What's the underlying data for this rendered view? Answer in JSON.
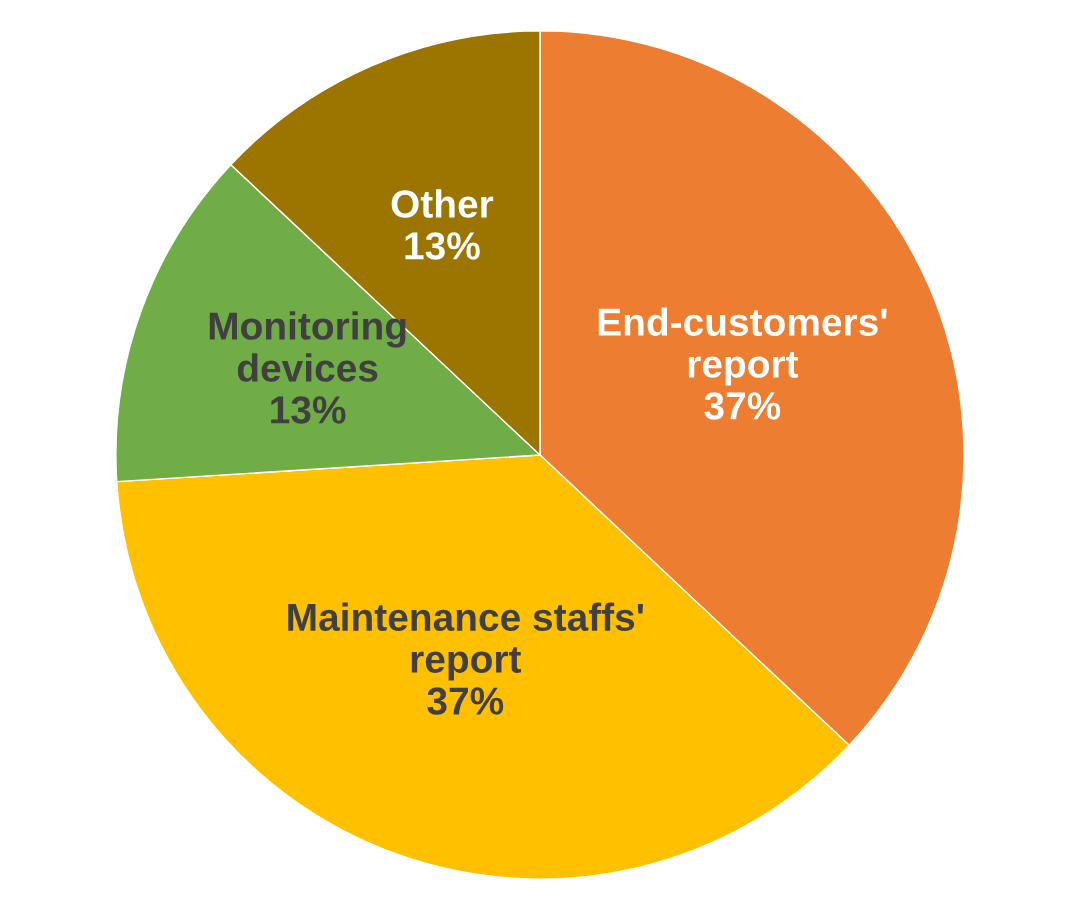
{
  "chart_data": {
    "type": "pie",
    "categories": [
      "End-customers'\nreport",
      "Maintenance staffs'\nreport",
      "Monitoring\ndevices",
      "Other"
    ],
    "values": [
      37,
      37,
      13,
      13
    ],
    "colors": [
      "#ed7d31",
      "#ffc000",
      "#70ad47",
      "#9c7400"
    ],
    "value_labels": [
      "37%",
      "37%",
      "13%",
      "13%"
    ]
  }
}
